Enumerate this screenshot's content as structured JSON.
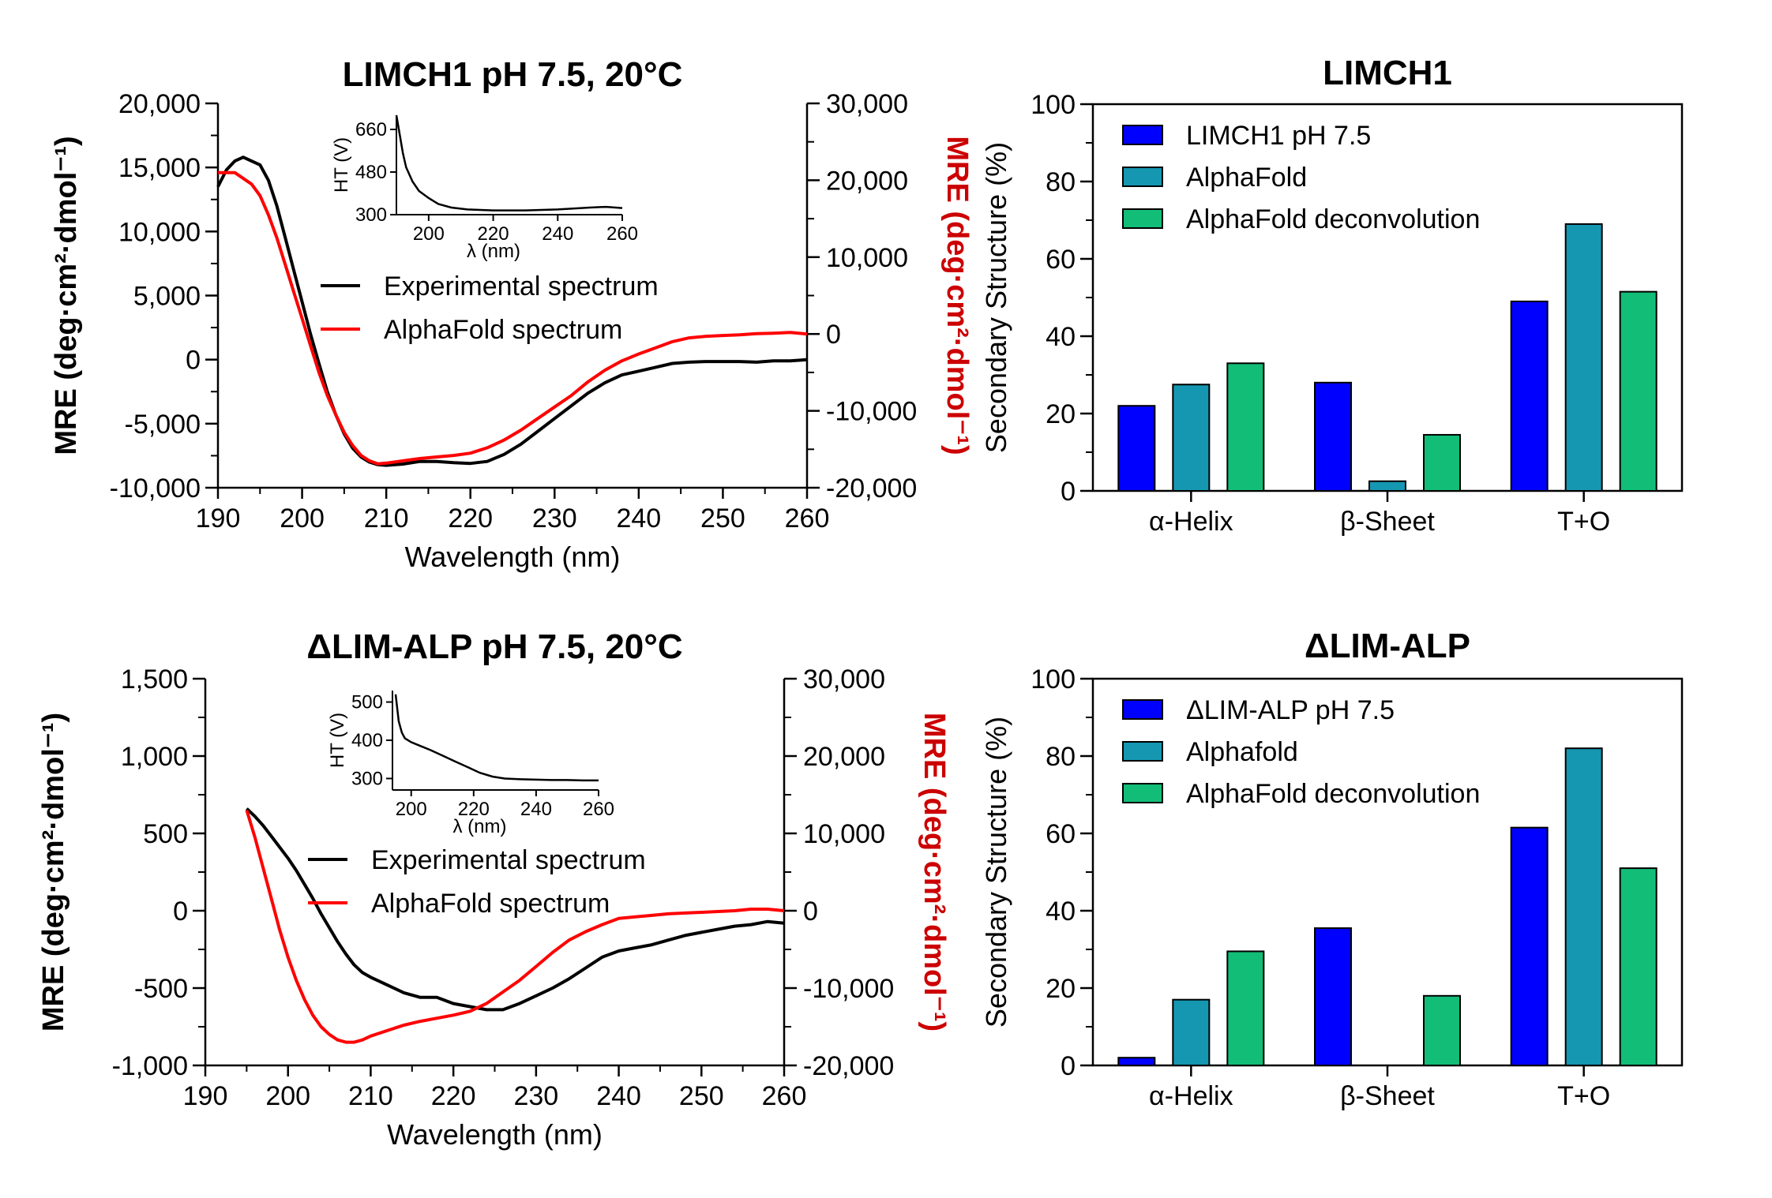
{
  "colors": {
    "experimental": "#000000",
    "alphafold_line": "#ff0000",
    "right_axis_title": "#cc0000",
    "bar_primary": "#0000ff",
    "bar_alphafold": "#1597b1",
    "bar_deconv": "#12bd77"
  },
  "chart_data": [
    {
      "id": "cd-limch1",
      "type": "line",
      "title": "LIMCH1 pH 7.5, 20°C",
      "xlabel": "Wavelength (nm)",
      "ylabel_left": "MRE (deg·cm²·dmol⁻¹)",
      "ylabel_right": "MRE (deg·cm²·dmol⁻¹)",
      "xlim": [
        190,
        260
      ],
      "ylim_left": [
        -10000,
        20000
      ],
      "ylim_right": [
        -20000,
        30000
      ],
      "xticks": [
        190,
        200,
        210,
        220,
        230,
        240,
        250,
        260
      ],
      "xtick_labels": [
        "190",
        "200",
        "210",
        "220",
        "230",
        "240",
        "250",
        "260"
      ],
      "yticks_left": [
        -10000,
        -5000,
        0,
        5000,
        10000,
        15000,
        20000
      ],
      "ytick_labels_left": [
        "-10,000",
        "-5,000",
        "0",
        "5,000",
        "10,000",
        "15,000",
        "20,000"
      ],
      "yticks_right": [
        -20000,
        -10000,
        0,
        10000,
        20000,
        30000
      ],
      "ytick_labels_right": [
        "-20,000",
        "-10,000",
        "0",
        "10,000",
        "20,000",
        "30,000"
      ],
      "legend": [
        "Experimental spectrum",
        "AlphaFold spectrum"
      ],
      "series": [
        {
          "name": "Experimental spectrum",
          "axis": "left",
          "x": [
            190,
            191,
            192,
            193,
            194,
            195,
            196,
            197,
            198,
            199,
            200,
            201,
            202,
            203,
            204,
            205,
            206,
            207,
            208,
            209,
            210,
            212,
            214,
            216,
            218,
            220,
            222,
            224,
            226,
            228,
            230,
            232,
            234,
            236,
            238,
            240,
            242,
            244,
            246,
            248,
            250,
            252,
            254,
            256,
            258,
            260
          ],
          "y": [
            13500,
            14800,
            15500,
            15800,
            15500,
            15200,
            14000,
            12000,
            9500,
            7000,
            4500,
            2000,
            -300,
            -2500,
            -4300,
            -5800,
            -6900,
            -7600,
            -8000,
            -8200,
            -8250,
            -8150,
            -7950,
            -7950,
            -8050,
            -8100,
            -7950,
            -7400,
            -6600,
            -5600,
            -4600,
            -3600,
            -2600,
            -1800,
            -1200,
            -900,
            -600,
            -300,
            -200,
            -150,
            -150,
            -150,
            -200,
            -100,
            -100,
            0
          ]
        },
        {
          "name": "AlphaFold spectrum",
          "axis": "right",
          "x": [
            190,
            192,
            194,
            195,
            196,
            197,
            198,
            199,
            200,
            201,
            202,
            203,
            204,
            205,
            206,
            207,
            208,
            209,
            210,
            212,
            214,
            216,
            218,
            220,
            222,
            224,
            226,
            228,
            230,
            232,
            234,
            236,
            238,
            240,
            242,
            244,
            246,
            248,
            250,
            252,
            254,
            256,
            258,
            260
          ],
          "y": [
            21000,
            21000,
            19500,
            18000,
            15500,
            12500,
            9000,
            5500,
            2000,
            -1500,
            -5000,
            -8000,
            -10500,
            -12800,
            -14500,
            -15800,
            -16500,
            -16900,
            -16800,
            -16500,
            -16200,
            -16000,
            -15800,
            -15500,
            -14800,
            -13800,
            -12500,
            -11000,
            -9500,
            -8000,
            -6200,
            -4700,
            -3500,
            -2600,
            -1800,
            -1000,
            -500,
            -300,
            -200,
            -100,
            50,
            100,
            200,
            0
          ]
        }
      ],
      "inset": {
        "xlabel": "λ (nm)",
        "ylabel": "HT (V)",
        "xlim": [
          190,
          260
        ],
        "ylim": [
          300,
          720
        ],
        "xticks": [
          200,
          220,
          240,
          260
        ],
        "xtick_labels": [
          "200",
          "220",
          "240",
          "260"
        ],
        "yticks": [
          300,
          480,
          660
        ],
        "ytick_labels": [
          "300",
          "480",
          "660"
        ],
        "x": [
          190,
          191,
          192,
          193,
          195,
          197,
          200,
          203,
          207,
          212,
          220,
          230,
          240,
          250,
          255,
          260
        ],
        "y": [
          720,
          640,
          560,
          500,
          440,
          400,
          370,
          345,
          330,
          322,
          318,
          318,
          322,
          330,
          333,
          328
        ]
      }
    },
    {
      "id": "cd-dlimalp",
      "type": "line",
      "title": "ΔLIM-ALP pH 7.5, 20°C",
      "xlabel": "Wavelength (nm)",
      "ylabel_left": "MRE (deg·cm²·dmol⁻¹)",
      "ylabel_right": "MRE (deg·cm²·dmol⁻¹)",
      "xlim": [
        190,
        260
      ],
      "ylim_left": [
        -1000,
        1500
      ],
      "ylim_right": [
        -20000,
        30000
      ],
      "xticks": [
        190,
        200,
        210,
        220,
        230,
        240,
        250,
        260
      ],
      "xtick_labels": [
        "190",
        "200",
        "210",
        "220",
        "230",
        "240",
        "250",
        "260"
      ],
      "yticks_left": [
        -1000,
        -500,
        0,
        500,
        1000,
        1500
      ],
      "ytick_labels_left": [
        "-1,000",
        "-500",
        "0",
        "500",
        "1,000",
        "1,500"
      ],
      "yticks_right": [
        -20000,
        -10000,
        0,
        10000,
        20000,
        30000
      ],
      "ytick_labels_right": [
        "-20,000",
        "-10,000",
        "0",
        "10,000",
        "20,000",
        "30,000"
      ],
      "legend": [
        "Experimental spectrum",
        "AlphaFold spectrum"
      ],
      "series": [
        {
          "name": "Experimental spectrum",
          "axis": "left",
          "x": [
            195,
            196,
            197,
            198,
            199,
            200,
            201,
            202,
            203,
            204,
            205,
            206,
            207,
            208,
            209,
            210,
            212,
            214,
            216,
            218,
            220,
            222,
            224,
            226,
            228,
            230,
            232,
            234,
            236,
            238,
            240,
            242,
            244,
            246,
            248,
            250,
            252,
            254,
            256,
            258,
            260
          ],
          "y": [
            660,
            610,
            550,
            480,
            410,
            340,
            260,
            170,
            80,
            -20,
            -110,
            -200,
            -280,
            -350,
            -400,
            -430,
            -480,
            -530,
            -560,
            -560,
            -600,
            -620,
            -640,
            -640,
            -600,
            -550,
            -500,
            -440,
            -370,
            -300,
            -260,
            -240,
            -220,
            -190,
            -160,
            -140,
            -120,
            -100,
            -90,
            -70,
            -80
          ]
        },
        {
          "name": "AlphaFold spectrum",
          "axis": "right",
          "x": [
            195,
            196,
            197,
            198,
            199,
            200,
            201,
            202,
            203,
            204,
            205,
            206,
            207,
            208,
            209,
            210,
            212,
            214,
            216,
            218,
            220,
            222,
            224,
            226,
            228,
            230,
            232,
            234,
            236,
            238,
            240,
            242,
            244,
            246,
            248,
            250,
            252,
            254,
            256,
            258,
            260
          ],
          "y": [
            13000,
            9500,
            5500,
            1500,
            -2500,
            -6000,
            -9000,
            -11500,
            -13500,
            -15000,
            -16000,
            -16700,
            -17000,
            -17000,
            -16700,
            -16200,
            -15500,
            -14800,
            -14300,
            -13900,
            -13500,
            -13000,
            -12000,
            -10500,
            -9000,
            -7200,
            -5400,
            -3800,
            -2700,
            -1800,
            -1000,
            -800,
            -600,
            -400,
            -300,
            -200,
            -100,
            0,
            200,
            200,
            0
          ]
        }
      ],
      "inset": {
        "xlabel": "λ (nm)",
        "ylabel": "HT (V)",
        "xlim": [
          194,
          260
        ],
        "ylim": [
          270,
          530
        ],
        "xticks": [
          200,
          220,
          240,
          260
        ],
        "xtick_labels": [
          "200",
          "220",
          "240",
          "260"
        ],
        "yticks": [
          300,
          400,
          500
        ],
        "ytick_labels": [
          "300",
          "400",
          "500"
        ],
        "x": [
          195,
          196,
          197,
          198,
          200,
          203,
          206,
          210,
          214,
          218,
          222,
          226,
          230,
          235,
          240,
          245,
          250,
          255,
          260
        ],
        "y": [
          520,
          450,
          420,
          405,
          395,
          385,
          375,
          360,
          345,
          330,
          315,
          305,
          300,
          298,
          297,
          296,
          296,
          295,
          295
        ]
      }
    },
    {
      "id": "bar-limch1",
      "type": "bar",
      "title": "LIMCH1",
      "ylabel": "Secondary Structure (%)",
      "ylim": [
        0,
        100
      ],
      "yticks": [
        0,
        20,
        40,
        60,
        80,
        100
      ],
      "ytick_labels": [
        "0",
        "20",
        "40",
        "60",
        "80",
        "100"
      ],
      "categories": [
        "α-Helix",
        "β-Sheet",
        "T+O"
      ],
      "series": [
        {
          "name": "LIMCH1 pH 7.5",
          "values": [
            22,
            28,
            49
          ]
        },
        {
          "name": "AlphaFold",
          "values": [
            27.5,
            2.5,
            69
          ]
        },
        {
          "name": "AlphaFold deconvolution",
          "values": [
            33,
            14.5,
            51.5
          ]
        }
      ]
    },
    {
      "id": "bar-dlimalp",
      "type": "bar",
      "title": "ΔLIM-ALP",
      "ylabel": "Secondary Structure (%)",
      "ylim": [
        0,
        100
      ],
      "yticks": [
        0,
        20,
        40,
        60,
        80,
        100
      ],
      "ytick_labels": [
        "0",
        "20",
        "40",
        "60",
        "80",
        "100"
      ],
      "categories": [
        "α-Helix",
        "β-Sheet",
        "T+O"
      ],
      "series": [
        {
          "name": "ΔLIM-ALP pH 7.5",
          "values": [
            2,
            35.5,
            61.5
          ]
        },
        {
          "name": "Alphafold",
          "values": [
            17,
            0,
            82
          ]
        },
        {
          "name": "AlphaFold deconvolution",
          "values": [
            29.5,
            18,
            51
          ]
        }
      ]
    }
  ]
}
